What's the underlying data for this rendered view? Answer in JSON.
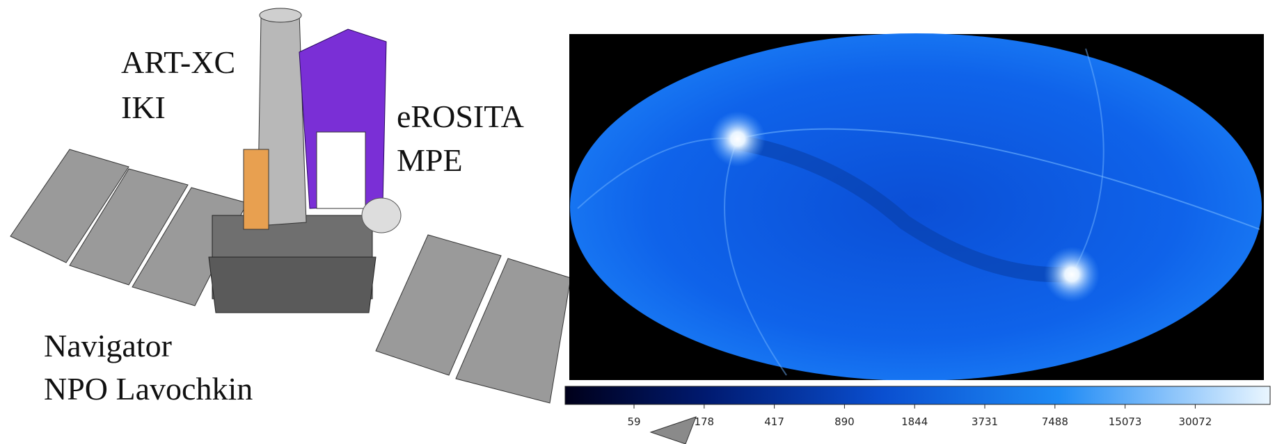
{
  "labels": {
    "art_xc": "ART-XC",
    "iki": "IKI",
    "erosita": "eROSITA",
    "mpe": "MPE",
    "navigator": "Navigator",
    "npo": "NPO Lavochkin"
  },
  "colorbar": {
    "ticks": [
      59,
      178,
      417,
      890,
      1844,
      3731,
      7488,
      15073,
      30072
    ]
  }
}
